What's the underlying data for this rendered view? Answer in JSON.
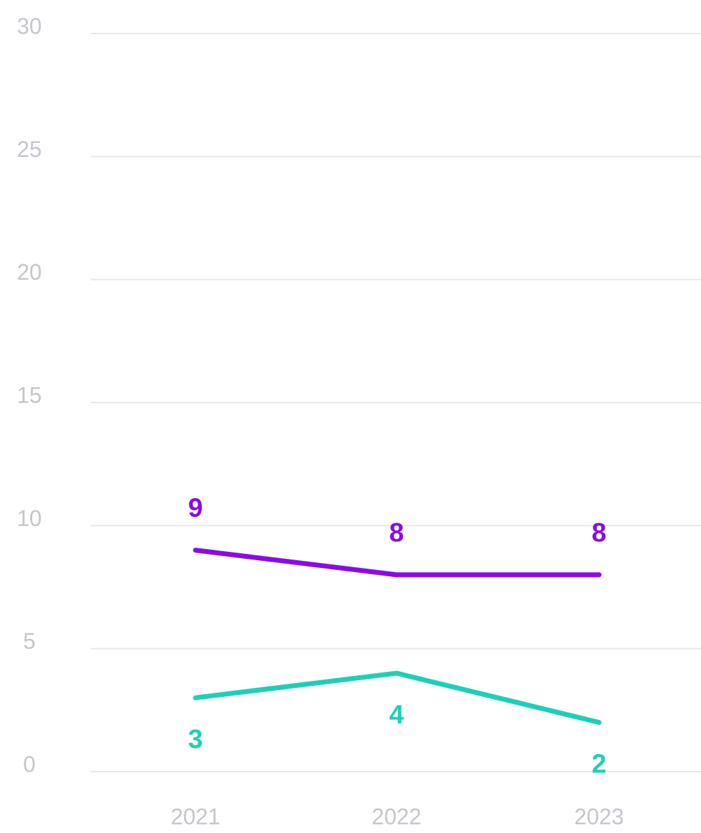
{
  "chart_data": {
    "type": "line",
    "categories": [
      "2021",
      "2022",
      "2023"
    ],
    "series": [
      {
        "color": "#8a0be6",
        "values": [
          9,
          8,
          8
        ]
      },
      {
        "color": "#1ecfb7",
        "values": [
          3,
          4,
          2
        ]
      }
    ],
    "ylim": [
      0,
      30
    ],
    "yticks": [
      0,
      5,
      10,
      15,
      20,
      25,
      30
    ],
    "grid": true
  }
}
